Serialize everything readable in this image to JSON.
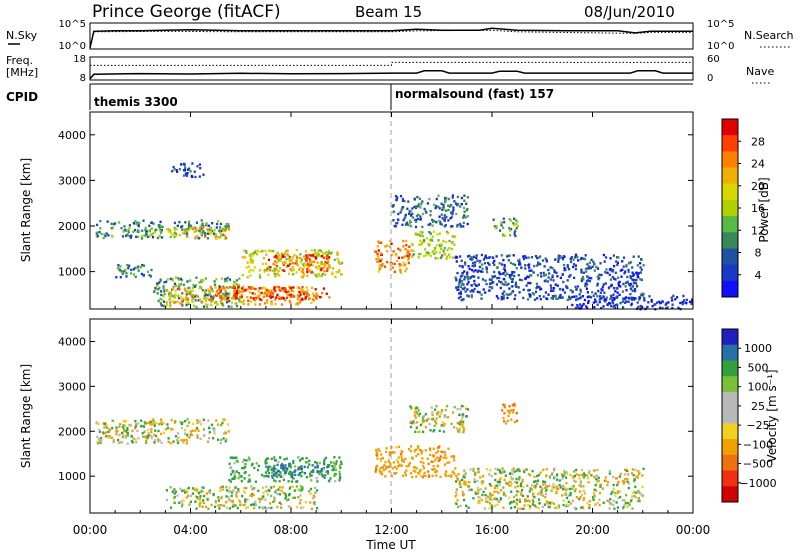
{
  "header": {
    "station": "Prince George (fitACF)",
    "beam": "Beam 15",
    "date": "08/Jun/2010"
  },
  "noise_panel": {
    "left_label": "N.Sky",
    "right_label": "N.Search",
    "left_ticks": [
      "10^5",
      "10^0"
    ],
    "right_ticks": [
      "10^5",
      "10^0"
    ]
  },
  "freq_panel": {
    "left_label_1": "Freq.",
    "left_label_2": "[MHz]",
    "right_label": "Nave",
    "left_ticks": [
      "18",
      "8"
    ],
    "right_ticks": [
      "60",
      "0"
    ]
  },
  "cpid_panel": {
    "label": "CPID",
    "mode_1": "themis 3300",
    "mode_2": "normalsound (fast) 157"
  },
  "power_panel": {
    "ylabel": "Slant Range [km]",
    "colorbar_label": "Power [dB]",
    "colorbar_ticks": [
      "28",
      "24",
      "20",
      "16",
      "12",
      "8",
      "4"
    ],
    "colorbar_colors": [
      "#e00000",
      "#ff4000",
      "#ff8000",
      "#f0b000",
      "#d8d800",
      "#b0d000",
      "#58b848",
      "#388858",
      "#2050a0",
      "#1838c8",
      "#1010ff"
    ]
  },
  "velocity_panel": {
    "ylabel": "Slant Range [km]",
    "colorbar_label": "Velocity [m s⁻¹]",
    "colorbar_ticks": [
      "1000",
      "500",
      "100",
      "25",
      "−25",
      "−100",
      "−500",
      "−1000"
    ],
    "colorbar_colors": [
      "#2020c0",
      "#2870a8",
      "#30a040",
      "#78c038",
      "#b8b8b8",
      "#b8b8b8",
      "#f0d020",
      "#f0a000",
      "#f07010",
      "#f03010",
      "#d00000"
    ]
  },
  "chart_data": {
    "type": "heatmap",
    "xlabel": "Time UT",
    "x_ticks": [
      "00:00",
      "04:00",
      "08:00",
      "12:00",
      "16:00",
      "20:00",
      "00:00"
    ],
    "y_ticks_km": [
      1000,
      2000,
      3000,
      4000
    ],
    "xlim_hours": [
      0,
      24
    ],
    "ylim_km": [
      180,
      4500
    ],
    "mode_change_hour": 12.0,
    "noise_ylim_log10": [
      0,
      5
    ],
    "freq_ylim_mhz": [
      8,
      18
    ],
    "nave_ylim": [
      0,
      60
    ],
    "n_sky_log10": [
      [
        0.0,
        0.2
      ],
      [
        0.15,
        3.4
      ],
      [
        1.0,
        3.5
      ],
      [
        2.0,
        3.5
      ],
      [
        3.0,
        3.6
      ],
      [
        4.0,
        3.7
      ],
      [
        5.0,
        3.6
      ],
      [
        6.0,
        3.5
      ],
      [
        8.0,
        3.5
      ],
      [
        10.0,
        3.5
      ],
      [
        12.0,
        3.5
      ],
      [
        13.0,
        3.8
      ],
      [
        14.0,
        3.6
      ],
      [
        15.5,
        3.6
      ],
      [
        16.0,
        4.0
      ],
      [
        17.0,
        3.6
      ],
      [
        19.0,
        3.5
      ],
      [
        20.0,
        3.5
      ],
      [
        21.0,
        3.5
      ],
      [
        21.7,
        3.1
      ],
      [
        22.3,
        3.4
      ],
      [
        24.0,
        3.4
      ]
    ],
    "n_search_log10": [
      [
        0.0,
        0.1
      ],
      [
        0.15,
        3.3
      ],
      [
        3.0,
        3.4
      ],
      [
        6.0,
        3.3
      ],
      [
        12.0,
        3.3
      ],
      [
        13.0,
        3.5
      ],
      [
        16.0,
        3.6
      ],
      [
        17.0,
        3.3
      ],
      [
        21.7,
        3.0
      ],
      [
        22.3,
        3.2
      ],
      [
        24.0,
        3.2
      ]
    ],
    "freq_mhz": [
      [
        0.0,
        8.5
      ],
      [
        0.15,
        10.5
      ],
      [
        2.0,
        10.8
      ],
      [
        4.0,
        10.6
      ],
      [
        6.0,
        10.9
      ],
      [
        8.0,
        10.7
      ],
      [
        10.0,
        10.8
      ],
      [
        12.0,
        11.0
      ],
      [
        13.0,
        11.0
      ],
      [
        13.3,
        12.0
      ],
      [
        14.0,
        12.0
      ],
      [
        14.3,
        11.0
      ],
      [
        16.0,
        11.0
      ],
      [
        16.3,
        11.8
      ],
      [
        17.0,
        11.8
      ],
      [
        17.3,
        11.0
      ],
      [
        21.5,
        11.0
      ],
      [
        21.8,
        12.0
      ],
      [
        22.5,
        12.0
      ],
      [
        22.8,
        11.0
      ],
      [
        24.0,
        11.0
      ]
    ],
    "nave": [
      [
        0.0,
        38
      ],
      [
        12.0,
        38
      ],
      [
        12.0,
        46
      ],
      [
        24.0,
        46
      ]
    ],
    "power_patches": [
      {
        "t0": 0.2,
        "t1": 5.5,
        "r0": 1750,
        "r1": 2150,
        "db": 10
      },
      {
        "t0": 3.5,
        "t1": 5.5,
        "r0": 1750,
        "r1": 2000,
        "db": 20
      },
      {
        "t0": 2.0,
        "t1": 3.5,
        "r0": 1800,
        "r1": 2000,
        "db": 16
      },
      {
        "t0": 1.0,
        "t1": 2.5,
        "r0": 900,
        "r1": 1200,
        "db": 10
      },
      {
        "t0": 2.5,
        "t1": 6.0,
        "r0": 250,
        "r1": 900,
        "db": 12
      },
      {
        "t0": 3.0,
        "t1": 9.0,
        "r0": 300,
        "r1": 700,
        "db": 22
      },
      {
        "t0": 6.0,
        "t1": 10.0,
        "r0": 900,
        "r1": 1500,
        "db": 18
      },
      {
        "t0": 7.0,
        "t1": 9.5,
        "r0": 1000,
        "r1": 1400,
        "db": 26
      },
      {
        "t0": 3.2,
        "t1": 4.5,
        "r0": 3100,
        "r1": 3400,
        "db": 6
      },
      {
        "t0": 5.0,
        "t1": 9.5,
        "r0": 400,
        "r1": 700,
        "db": 28
      },
      {
        "t0": 11.3,
        "t1": 12.7,
        "r0": 1000,
        "r1": 1700,
        "db": 24
      },
      {
        "t0": 12.7,
        "t1": 14.5,
        "r0": 1300,
        "r1": 1900,
        "db": 16
      },
      {
        "t0": 12.0,
        "t1": 15.0,
        "r0": 2000,
        "r1": 2700,
        "db": 8
      },
      {
        "t0": 14.5,
        "t1": 22.0,
        "r0": 400,
        "r1": 1400,
        "db": 6
      },
      {
        "t0": 16.0,
        "t1": 17.0,
        "r0": 1800,
        "r1": 2200,
        "db": 12
      },
      {
        "t0": 19.0,
        "t1": 24.0,
        "r0": 200,
        "r1": 500,
        "db": 4
      }
    ],
    "velocity_patches": [
      {
        "t0": 0.2,
        "t1": 5.5,
        "r0": 1750,
        "r1": 2300,
        "v": 0
      },
      {
        "t0": 3.0,
        "t1": 9.0,
        "r0": 300,
        "r1": 800,
        "v": 0
      },
      {
        "t0": 5.5,
        "t1": 10.0,
        "r0": 900,
        "r1": 1450,
        "v": 150
      },
      {
        "t0": 7.0,
        "t1": 9.5,
        "r0": 1000,
        "r1": 1300,
        "v": 400
      },
      {
        "t0": 11.3,
        "t1": 14.5,
        "r0": 1000,
        "r1": 1700,
        "v": -200
      },
      {
        "t0": 12.7,
        "t1": 15.0,
        "r0": 2000,
        "r1": 2600,
        "v": 0
      },
      {
        "t0": 16.3,
        "t1": 17.0,
        "r0": 2200,
        "r1": 2700,
        "v": -300
      },
      {
        "t0": 14.5,
        "t1": 22.0,
        "r0": 300,
        "r1": 1200,
        "v": 0
      }
    ]
  }
}
